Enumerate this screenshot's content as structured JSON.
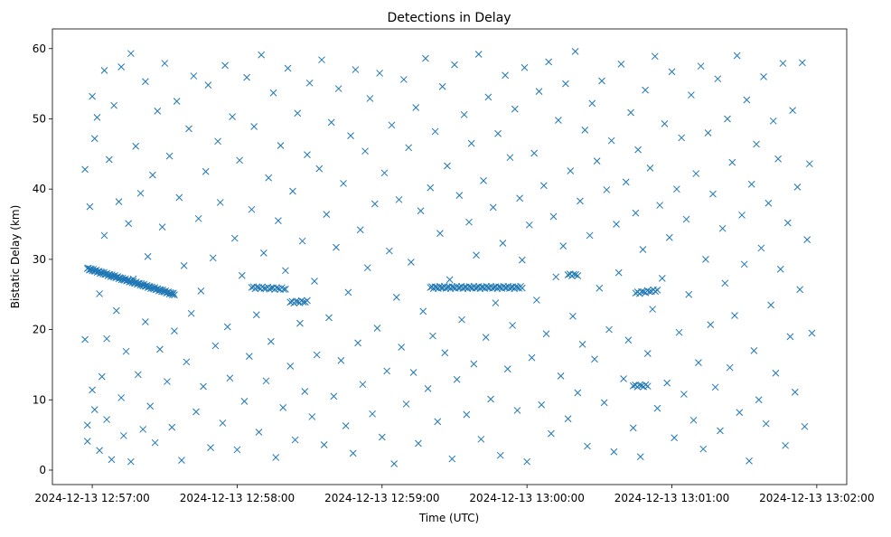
{
  "chart_data": {
    "type": "scatter",
    "title": "Detections in Delay",
    "xlabel": "Time (UTC)",
    "ylabel": "Bistatic Delay (km)",
    "x_units": "seconds after 2024-12-13 12:57:00",
    "xlim": [
      -16.5,
      312.4
    ],
    "ylim": [
      -2.06,
      62.8
    ],
    "x_ticks": [
      0,
      60,
      120,
      180,
      240,
      300
    ],
    "x_tick_labels": [
      "2024-12-13 12:57:00",
      "2024-12-13 12:58:00",
      "2024-12-13 12:59:00",
      "2024-12-13 13:00:00",
      "2024-12-13 13:01:00",
      "2024-12-13 13:02:00"
    ],
    "y_ticks": [
      0,
      10,
      20,
      30,
      40,
      50,
      60
    ],
    "y_tick_labels": [
      "0",
      "10",
      "20",
      "30",
      "40",
      "50",
      "60"
    ],
    "marker": "x",
    "color": "#1f77b4",
    "grid": false,
    "tracks": [
      {
        "x_start": -2,
        "x_end": 34,
        "y_start": 28.7,
        "y_end": 25.0,
        "count": 90
      },
      {
        "x_start": 66,
        "x_end": 80,
        "y_start": 26.0,
        "y_end": 25.8,
        "count": 20
      },
      {
        "x_start": 82,
        "x_end": 89,
        "y_start": 23.9,
        "y_end": 24.0,
        "count": 10
      },
      {
        "x_start": 140,
        "x_end": 178,
        "y_start": 26.0,
        "y_end": 26.0,
        "count": 60
      },
      {
        "x_start": 197,
        "x_end": 201,
        "y_start": 27.8,
        "y_end": 27.8,
        "count": 6
      },
      {
        "x_start": 225,
        "x_end": 234,
        "y_start": 25.2,
        "y_end": 25.6,
        "count": 12
      },
      {
        "x_start": 224,
        "x_end": 230,
        "y_start": 12.0,
        "y_end": 12.0,
        "count": 8
      }
    ],
    "points": [
      [
        -3,
        42.8
      ],
      [
        -3,
        18.6
      ],
      [
        -2,
        6.4
      ],
      [
        -2,
        4.1
      ],
      [
        -1,
        37.5
      ],
      [
        0,
        53.2
      ],
      [
        0,
        11.4
      ],
      [
        1,
        47.2
      ],
      [
        1,
        8.6
      ],
      [
        2,
        50.2
      ],
      [
        3,
        25.1
      ],
      [
        3,
        2.8
      ],
      [
        4,
        13.3
      ],
      [
        5,
        56.9
      ],
      [
        5,
        33.4
      ],
      [
        6,
        18.7
      ],
      [
        6,
        7.2
      ],
      [
        7,
        44.2
      ],
      [
        8,
        1.5
      ],
      [
        9,
        51.9
      ],
      [
        10,
        22.7
      ],
      [
        11,
        38.2
      ],
      [
        12,
        10.3
      ],
      [
        12,
        57.4
      ],
      [
        13,
        4.9
      ],
      [
        14,
        16.9
      ],
      [
        15,
        35.1
      ],
      [
        16,
        59.3
      ],
      [
        16,
        1.2
      ],
      [
        17,
        27.2
      ],
      [
        18,
        46.1
      ],
      [
        19,
        13.6
      ],
      [
        20,
        39.4
      ],
      [
        21,
        5.8
      ],
      [
        22,
        55.3
      ],
      [
        22,
        21.1
      ],
      [
        23,
        30.4
      ],
      [
        24,
        9.1
      ],
      [
        25,
        42.0
      ],
      [
        26,
        3.9
      ],
      [
        27,
        51.1
      ],
      [
        28,
        17.2
      ],
      [
        29,
        34.6
      ],
      [
        30,
        57.9
      ],
      [
        31,
        12.6
      ],
      [
        32,
        44.7
      ],
      [
        33,
        6.1
      ],
      [
        34,
        19.8
      ],
      [
        35,
        52.5
      ],
      [
        36,
        38.8
      ],
      [
        37,
        1.4
      ],
      [
        38,
        29.1
      ],
      [
        39,
        15.4
      ],
      [
        40,
        48.6
      ],
      [
        41,
        22.3
      ],
      [
        42,
        56.1
      ],
      [
        43,
        8.3
      ],
      [
        44,
        35.8
      ],
      [
        45,
        25.5
      ],
      [
        46,
        11.9
      ],
      [
        47,
        42.5
      ],
      [
        48,
        54.8
      ],
      [
        49,
        3.2
      ],
      [
        50,
        30.2
      ],
      [
        51,
        17.7
      ],
      [
        52,
        46.8
      ],
      [
        53,
        38.1
      ],
      [
        54,
        6.7
      ],
      [
        55,
        57.6
      ],
      [
        56,
        20.4
      ],
      [
        57,
        13.1
      ],
      [
        58,
        50.3
      ],
      [
        59,
        33.0
      ],
      [
        60,
        2.9
      ],
      [
        61,
        44.1
      ],
      [
        62,
        27.7
      ],
      [
        63,
        9.8
      ],
      [
        64,
        55.9
      ],
      [
        65,
        16.2
      ],
      [
        66,
        37.1
      ],
      [
        67,
        48.9
      ],
      [
        68,
        22.1
      ],
      [
        69,
        5.4
      ],
      [
        70,
        59.1
      ],
      [
        71,
        30.9
      ],
      [
        72,
        12.7
      ],
      [
        73,
        41.6
      ],
      [
        74,
        18.3
      ],
      [
        75,
        53.7
      ],
      [
        76,
        1.8
      ],
      [
        77,
        35.5
      ],
      [
        78,
        46.2
      ],
      [
        79,
        8.9
      ],
      [
        80,
        28.4
      ],
      [
        81,
        57.2
      ],
      [
        82,
        14.8
      ],
      [
        83,
        39.7
      ],
      [
        84,
        4.3
      ],
      [
        85,
        50.8
      ],
      [
        86,
        20.9
      ],
      [
        87,
        32.6
      ],
      [
        88,
        11.2
      ],
      [
        89,
        44.9
      ],
      [
        90,
        55.1
      ],
      [
        91,
        7.6
      ],
      [
        92,
        26.9
      ],
      [
        93,
        16.4
      ],
      [
        94,
        42.9
      ],
      [
        95,
        58.4
      ],
      [
        96,
        3.6
      ],
      [
        97,
        36.4
      ],
      [
        98,
        21.7
      ],
      [
        99,
        49.5
      ],
      [
        100,
        10.5
      ],
      [
        101,
        31.7
      ],
      [
        102,
        54.3
      ],
      [
        103,
        15.6
      ],
      [
        104,
        40.8
      ],
      [
        105,
        6.3
      ],
      [
        106,
        25.3
      ],
      [
        107,
        47.6
      ],
      [
        108,
        2.4
      ],
      [
        109,
        57.0
      ],
      [
        110,
        18.1
      ],
      [
        111,
        34.2
      ],
      [
        112,
        12.2
      ],
      [
        113,
        45.4
      ],
      [
        114,
        28.8
      ],
      [
        115,
        52.9
      ],
      [
        116,
        8.0
      ],
      [
        117,
        37.9
      ],
      [
        118,
        20.2
      ],
      [
        119,
        56.5
      ],
      [
        120,
        4.7
      ],
      [
        121,
        42.3
      ],
      [
        122,
        14.1
      ],
      [
        123,
        31.2
      ],
      [
        124,
        49.1
      ],
      [
        125,
        0.9
      ],
      [
        126,
        24.6
      ],
      [
        127,
        38.5
      ],
      [
        128,
        17.5
      ],
      [
        129,
        55.6
      ],
      [
        130,
        9.4
      ],
      [
        131,
        45.9
      ],
      [
        132,
        29.6
      ],
      [
        133,
        13.9
      ],
      [
        134,
        51.6
      ],
      [
        135,
        3.8
      ],
      [
        136,
        36.9
      ],
      [
        137,
        22.6
      ],
      [
        138,
        58.6
      ],
      [
        139,
        11.6
      ],
      [
        140,
        40.2
      ],
      [
        141,
        19.1
      ],
      [
        142,
        48.2
      ],
      [
        143,
        6.9
      ],
      [
        144,
        33.7
      ],
      [
        145,
        54.6
      ],
      [
        146,
        16.7
      ],
      [
        147,
        43.3
      ],
      [
        148,
        27.1
      ],
      [
        149,
        1.6
      ],
      [
        150,
        57.7
      ],
      [
        151,
        12.9
      ],
      [
        152,
        39.1
      ],
      [
        153,
        21.4
      ],
      [
        154,
        50.6
      ],
      [
        155,
        7.9
      ],
      [
        156,
        35.3
      ],
      [
        157,
        46.5
      ],
      [
        158,
        15.1
      ],
      [
        159,
        30.6
      ],
      [
        160,
        59.2
      ],
      [
        161,
        4.4
      ],
      [
        162,
        41.2
      ],
      [
        163,
        18.9
      ],
      [
        164,
        53.1
      ],
      [
        165,
        10.1
      ],
      [
        166,
        37.4
      ],
      [
        167,
        23.8
      ],
      [
        168,
        47.9
      ],
      [
        169,
        2.1
      ],
      [
        170,
        32.3
      ],
      [
        171,
        56.2
      ],
      [
        172,
        14.4
      ],
      [
        173,
        44.5
      ],
      [
        174,
        20.6
      ],
      [
        175,
        51.4
      ],
      [
        176,
        8.5
      ],
      [
        177,
        38.7
      ],
      [
        178,
        29.9
      ],
      [
        179,
        57.3
      ],
      [
        180,
        1.2
      ],
      [
        181,
        34.9
      ],
      [
        182,
        16.0
      ],
      [
        183,
        45.1
      ],
      [
        184,
        24.2
      ],
      [
        185,
        53.9
      ],
      [
        186,
        9.3
      ],
      [
        187,
        40.5
      ],
      [
        188,
        19.4
      ],
      [
        189,
        58.1
      ],
      [
        190,
        5.2
      ],
      [
        191,
        36.1
      ],
      [
        192,
        27.5
      ],
      [
        193,
        49.8
      ],
      [
        194,
        13.4
      ],
      [
        195,
        31.9
      ],
      [
        196,
        55.0
      ],
      [
        197,
        7.3
      ],
      [
        198,
        42.6
      ],
      [
        199,
        21.9
      ],
      [
        200,
        59.6
      ],
      [
        201,
        11.0
      ],
      [
        202,
        38.3
      ],
      [
        203,
        17.9
      ],
      [
        204,
        48.4
      ],
      [
        205,
        3.4
      ],
      [
        206,
        33.4
      ],
      [
        207,
        52.2
      ],
      [
        208,
        15.8
      ],
      [
        209,
        44.0
      ],
      [
        210,
        25.9
      ],
      [
        211,
        55.4
      ],
      [
        212,
        9.6
      ],
      [
        213,
        39.9
      ],
      [
        214,
        20.0
      ],
      [
        215,
        46.9
      ],
      [
        216,
        2.6
      ],
      [
        217,
        35.0
      ],
      [
        218,
        28.1
      ],
      [
        219,
        57.8
      ],
      [
        220,
        13.0
      ],
      [
        221,
        41.0
      ],
      [
        222,
        18.5
      ],
      [
        223,
        50.9
      ],
      [
        224,
        6.0
      ],
      [
        225,
        36.6
      ],
      [
        226,
        45.6
      ],
      [
        227,
        1.9
      ],
      [
        228,
        31.4
      ],
      [
        229,
        54.1
      ],
      [
        230,
        16.6
      ],
      [
        231,
        43.0
      ],
      [
        232,
        22.9
      ],
      [
        233,
        58.9
      ],
      [
        234,
        8.8
      ],
      [
        235,
        37.7
      ],
      [
        236,
        27.3
      ],
      [
        237,
        49.3
      ],
      [
        238,
        12.4
      ],
      [
        239,
        33.1
      ],
      [
        240,
        56.7
      ],
      [
        241,
        4.6
      ],
      [
        242,
        40.0
      ],
      [
        243,
        19.6
      ],
      [
        244,
        47.3
      ],
      [
        245,
        10.8
      ],
      [
        246,
        35.7
      ],
      [
        247,
        25.0
      ],
      [
        248,
        53.4
      ],
      [
        249,
        7.1
      ],
      [
        250,
        42.2
      ],
      [
        251,
        15.3
      ],
      [
        252,
        57.5
      ],
      [
        253,
        3.0
      ],
      [
        254,
        30.0
      ],
      [
        255,
        48.0
      ],
      [
        256,
        20.7
      ],
      [
        257,
        39.3
      ],
      [
        258,
        11.8
      ],
      [
        259,
        55.7
      ],
      [
        260,
        5.6
      ],
      [
        261,
        34.4
      ],
      [
        262,
        26.6
      ],
      [
        263,
        50.0
      ],
      [
        264,
        14.6
      ],
      [
        265,
        43.8
      ],
      [
        266,
        22.0
      ],
      [
        267,
        59.0
      ],
      [
        268,
        8.2
      ],
      [
        269,
        36.3
      ],
      [
        270,
        29.3
      ],
      [
        271,
        52.7
      ],
      [
        272,
        1.3
      ],
      [
        273,
        40.7
      ],
      [
        274,
        17.0
      ],
      [
        275,
        46.4
      ],
      [
        276,
        10.0
      ],
      [
        277,
        31.6
      ],
      [
        278,
        56.0
      ],
      [
        279,
        6.6
      ],
      [
        280,
        38.0
      ],
      [
        281,
        23.5
      ],
      [
        282,
        49.7
      ],
      [
        283,
        13.8
      ],
      [
        284,
        44.3
      ],
      [
        285,
        28.6
      ],
      [
        286,
        57.9
      ],
      [
        287,
        3.5
      ],
      [
        288,
        35.2
      ],
      [
        289,
        19.0
      ],
      [
        290,
        51.2
      ],
      [
        291,
        11.1
      ],
      [
        292,
        40.3
      ],
      [
        293,
        25.7
      ],
      [
        294,
        58.0
      ],
      [
        295,
        6.2
      ],
      [
        296,
        32.8
      ],
      [
        297,
        43.6
      ],
      [
        298,
        19.5
      ]
    ]
  }
}
